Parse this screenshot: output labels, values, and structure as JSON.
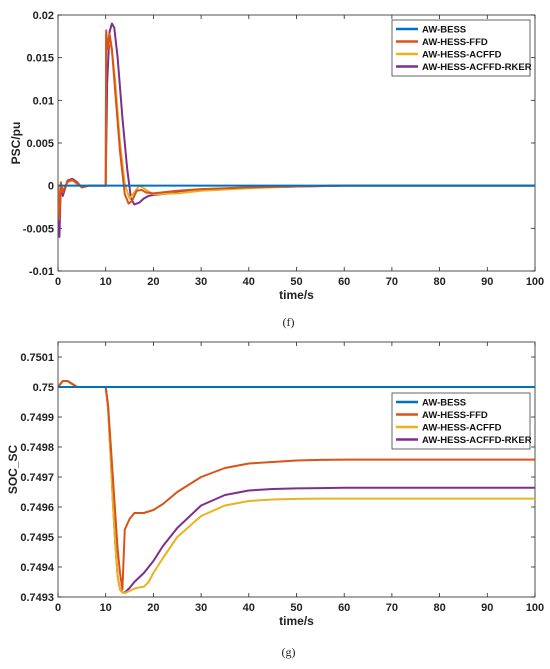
{
  "colors": {
    "AW-BESS": "#0072BD",
    "AW-HESS-FFD": "#D95319",
    "AW-HESS-ACFFD": "#EDB120",
    "AW-HESS-ACFFD-RKER": "#7E2F8E"
  },
  "chart_data": [
    {
      "type": "line",
      "caption": "(f)",
      "xlabel": "time/s",
      "ylabel": "PSC/pu",
      "xlim": [
        0,
        100
      ],
      "ylim": [
        -0.01,
        0.02
      ],
      "xticks": [
        0,
        10,
        20,
        30,
        40,
        50,
        60,
        70,
        80,
        90,
        100
      ],
      "yticks": [
        -0.01,
        -0.005,
        0,
        0.005,
        0.01,
        0.015,
        0.02
      ],
      "ytick_labels": [
        "-0.01",
        "-0.005",
        "0",
        "0.005",
        "0.01",
        "0.015",
        "0.02"
      ],
      "grid": false,
      "legend_position": "top-right",
      "series": [
        {
          "name": "AW-BESS",
          "x": [
            0,
            100
          ],
          "y": [
            0,
            0
          ]
        },
        {
          "name": "AW-HESS-FFD",
          "x": [
            0,
            0.3,
            0.6,
            1.0,
            2.0,
            3.0,
            4.0,
            5.0,
            6.5,
            8.0,
            9.5,
            10.0,
            10.1,
            10.4,
            10.8,
            11.3,
            12.0,
            13.0,
            14.0,
            14.8,
            15.5,
            16.5,
            17.5,
            18.5,
            20.0,
            25.0,
            30.0,
            40.0,
            50.0,
            60.0,
            100.0
          ],
          "y": [
            0,
            -0.004,
            0.0004,
            -0.0008,
            0.0005,
            0.0007,
            0.0003,
            -0.0002,
            0,
            0,
            0,
            0,
            0.0182,
            0.016,
            0.0178,
            0.016,
            0.011,
            0.004,
            -0.001,
            -0.0021,
            -0.0018,
            -0.0006,
            -0.0005,
            -0.0008,
            -0.0009,
            -0.0006,
            -0.0004,
            -0.0002,
            -0.0001,
            0,
            0
          ]
        },
        {
          "name": "AW-HESS-ACFFD",
          "x": [
            0,
            0.3,
            0.6,
            1.0,
            2.0,
            3.0,
            4.0,
            5.0,
            6.5,
            8.0,
            9.5,
            10.0,
            10.1,
            10.4,
            10.8,
            11.3,
            12.0,
            13.0,
            14.0,
            15.0,
            16.0,
            17.0,
            18.0,
            19.0,
            20.0,
            25.0,
            30.0,
            40.0,
            50.0,
            60.0,
            100.0
          ],
          "y": [
            0,
            -0.003,
            0.0003,
            -0.0006,
            0.0004,
            0.0006,
            0.0002,
            -0.0002,
            0,
            0,
            0,
            0,
            0.0175,
            0.0165,
            0.017,
            0.0158,
            0.0122,
            0.005,
            0.0002,
            -0.0015,
            -0.0008,
            0,
            -0.0003,
            -0.0007,
            -0.001,
            -0.0009,
            -0.0006,
            -0.0003,
            -0.0001,
            0,
            0
          ]
        },
        {
          "name": "AW-HESS-ACFFD-RKER",
          "x": [
            0,
            0.3,
            0.6,
            1.0,
            2.0,
            3.0,
            4.0,
            5.0,
            6.5,
            8.0,
            9.5,
            10.0,
            10.3,
            10.8,
            11.3,
            11.8,
            12.5,
            13.5,
            14.5,
            15.3,
            16.0,
            17.0,
            18.0,
            19.0,
            20.0,
            25.0,
            30.0,
            40.0,
            50.0,
            60.0,
            100.0
          ],
          "y": [
            0,
            -0.006,
            0.0002,
            -0.0012,
            0.0006,
            0.0008,
            0.0004,
            -0.0002,
            0,
            0,
            0,
            0,
            0.012,
            0.018,
            0.019,
            0.0185,
            0.015,
            0.008,
            0.002,
            -0.0015,
            -0.0022,
            -0.002,
            -0.0015,
            -0.0012,
            -0.0011,
            -0.0008,
            -0.0005,
            -0.0002,
            -0.0001,
            0,
            0
          ]
        }
      ]
    },
    {
      "type": "line",
      "caption": "(g)",
      "xlabel": "time/s",
      "ylabel": "SOC_SC",
      "xlim": [
        0,
        100
      ],
      "ylim": [
        0.7493,
        0.75015
      ],
      "xticks": [
        0,
        10,
        20,
        30,
        40,
        50,
        60,
        70,
        80,
        90,
        100
      ],
      "yticks": [
        0.7493,
        0.7494,
        0.7495,
        0.7496,
        0.7497,
        0.7498,
        0.7499,
        0.75,
        0.7501
      ],
      "ytick_labels": [
        "0.7493",
        "0.7494",
        "0.7495",
        "0.7496",
        "0.7497",
        "0.7498",
        "0.7499",
        "0.75",
        "0.7501"
      ],
      "grid": false,
      "legend_position": "center-right",
      "series": [
        {
          "name": "AW-BESS",
          "x": [
            0,
            100
          ],
          "y": [
            0.75,
            0.75
          ]
        },
        {
          "name": "AW-HESS-FFD",
          "x": [
            0,
            1,
            2,
            3,
            4,
            5,
            6,
            8,
            10,
            10.5,
            11,
            11.5,
            12,
            12.5,
            13,
            13.5,
            14,
            15,
            16,
            17,
            18,
            19,
            20,
            22,
            25,
            30,
            35,
            40,
            45,
            50,
            55,
            60,
            70,
            80,
            90,
            100
          ],
          "y": [
            0.75,
            0.75002,
            0.75002,
            0.75001,
            0.75,
            0.75,
            0.75,
            0.75,
            0.75,
            0.74994,
            0.74982,
            0.7497,
            0.74958,
            0.74946,
            0.74938,
            0.749325,
            0.749525,
            0.74956,
            0.74958,
            0.74958,
            0.74958,
            0.749585,
            0.74959,
            0.74961,
            0.74965,
            0.7497,
            0.74973,
            0.749745,
            0.74975,
            0.749755,
            0.749757,
            0.749758,
            0.749758,
            0.749758,
            0.749758,
            0.749758
          ]
        },
        {
          "name": "AW-HESS-ACFFD",
          "x": [
            0,
            1,
            2,
            3,
            4,
            5,
            6,
            8,
            10,
            10.5,
            11,
            11.5,
            12,
            12.5,
            13,
            13.5,
            14,
            15,
            16,
            17,
            18,
            19,
            20,
            22,
            25,
            30,
            35,
            40,
            45,
            50,
            55,
            60,
            70,
            80,
            90,
            100
          ],
          "y": [
            0.75,
            0.75002,
            0.75002,
            0.75001,
            0.75,
            0.75,
            0.75,
            0.75,
            0.75,
            0.74993,
            0.74978,
            0.74962,
            0.74948,
            0.74937,
            0.749325,
            0.749315,
            0.749313,
            0.74932,
            0.749328,
            0.749332,
            0.749334,
            0.74935,
            0.74938,
            0.74943,
            0.7495,
            0.74957,
            0.749605,
            0.74962,
            0.749625,
            0.749627,
            0.749628,
            0.749628,
            0.749628,
            0.749628,
            0.749628,
            0.749628
          ]
        },
        {
          "name": "AW-HESS-ACFFD-RKER",
          "x": [
            0,
            1,
            2,
            3,
            4,
            5,
            6,
            8,
            10,
            10.5,
            11,
            11.5,
            12,
            12.5,
            13,
            13.5,
            14,
            15,
            16,
            17,
            18,
            19,
            20,
            22,
            25,
            30,
            35,
            40,
            45,
            50,
            55,
            60,
            70,
            80,
            90,
            100
          ],
          "y": [
            0.75,
            0.75002,
            0.75002,
            0.75001,
            0.75,
            0.75,
            0.75,
            0.75,
            0.75,
            0.74993,
            0.74978,
            0.74962,
            0.74948,
            0.74937,
            0.749325,
            0.749315,
            0.749315,
            0.74933,
            0.74935,
            0.749365,
            0.74938,
            0.7494,
            0.74942,
            0.74947,
            0.74953,
            0.749605,
            0.74964,
            0.749655,
            0.74966,
            0.749662,
            0.749663,
            0.749664,
            0.749664,
            0.749664,
            0.749664,
            0.749664
          ]
        }
      ]
    }
  ]
}
